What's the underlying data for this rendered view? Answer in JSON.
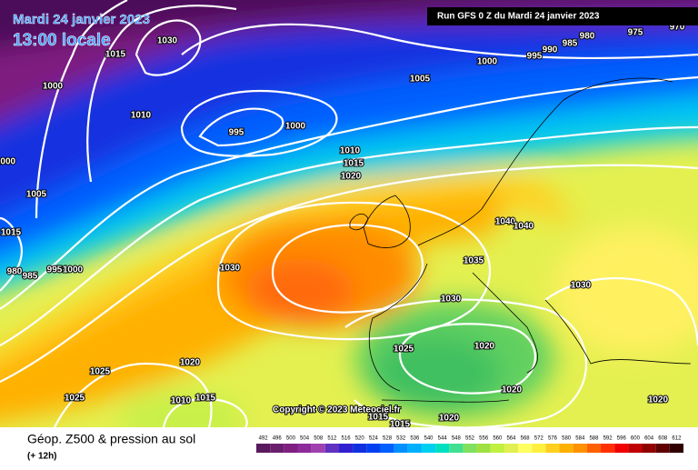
{
  "header": {
    "title": "Mardi 24 janvier 2023",
    "time": "13:00 locale",
    "run": "Run GFS 0 Z du Mardi 24 janvier 2023"
  },
  "copyright": "Copyright © 2023 Meteociel.fr",
  "footer": {
    "title": "Géop. Z500 & pression au sol",
    "step": "(+ 12h)"
  },
  "isobar_labels": [
    1030,
    1015,
    1000,
    1010,
    995,
    1000,
    1005,
    1000,
    1015,
    980,
    985,
    995,
    1000,
    1005,
    1000,
    995,
    990,
    985,
    980,
    975,
    970,
    1010,
    1015,
    1020,
    1030,
    1035,
    1040,
    1040,
    1030,
    1030,
    1025,
    1020,
    1020,
    1025,
    1020,
    1025,
    1010,
    1015,
    1015,
    1015,
    1020,
    1020
  ],
  "legend": {
    "values": [
      492,
      496,
      500,
      504,
      508,
      512,
      516,
      520,
      524,
      528,
      532,
      536,
      540,
      544,
      548,
      552,
      556,
      560,
      564,
      568,
      572,
      576,
      580,
      584,
      588,
      592,
      596,
      600,
      604,
      608,
      612
    ],
    "colors": [
      "#5a1a5e",
      "#6a1f6e",
      "#7f1f80",
      "#8e2a9a",
      "#a040b0",
      "#6030c0",
      "#3020d0",
      "#1030e0",
      "#0040f0",
      "#0060ff",
      "#0090ff",
      "#00b0ff",
      "#00d0f0",
      "#00e0c0",
      "#40e090",
      "#80e060",
      "#a0e040",
      "#c0f040",
      "#e0f050",
      "#ffff60",
      "#fff040",
      "#ffd020",
      "#ffb000",
      "#ff9000",
      "#ff6000",
      "#ff3000",
      "#f00000",
      "#c00000",
      "#900000",
      "#600000",
      "#300000"
    ]
  }
}
